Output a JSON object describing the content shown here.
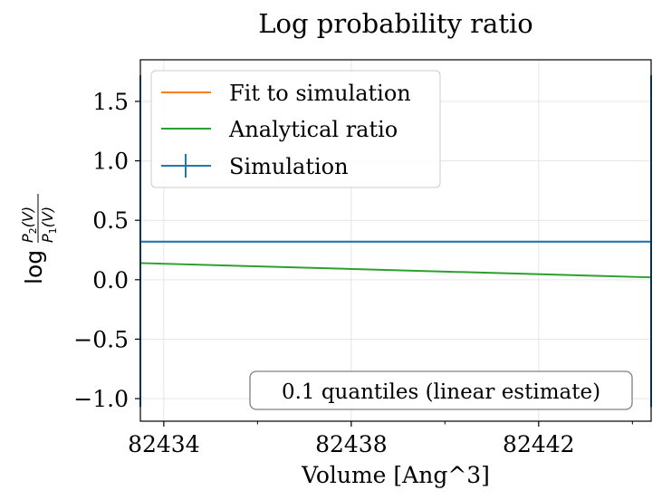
{
  "chart_data": {
    "type": "line",
    "title": "Log probability ratio",
    "xlabel": "Volume [Ang^3]",
    "ylabel": "log P2(V)/P1(V)",
    "ylabel_parts": {
      "log": "log",
      "num": "P",
      "num_sub": "2",
      "num_arg": "(V)",
      "den": "P",
      "den_sub": "1",
      "den_arg": "(V)"
    },
    "xlim": [
      82433.5,
      82444.4
    ],
    "ylim": [
      -1.19,
      1.85
    ],
    "xticks": [
      82434,
      82438,
      82442
    ],
    "xtick_labels": [
      "82434",
      "82438",
      "82442"
    ],
    "xminor": [
      82436,
      82440,
      82444
    ],
    "yticks": [
      -1.0,
      -0.5,
      0.0,
      0.5,
      1.0,
      1.5
    ],
    "ytick_labels": [
      "−1.0",
      "−0.5",
      "0.0",
      "0.5",
      "1.0",
      "1.5"
    ],
    "grid": true,
    "legend_position": "upper-left",
    "series": [
      {
        "name": "Fit to simulation",
        "color": "#ff7f0e",
        "x": [],
        "y": []
      },
      {
        "name": "Analytical ratio",
        "color": "#2ca02c",
        "x": [
          82433.5,
          82444.4
        ],
        "y": [
          0.14,
          0.02
        ]
      },
      {
        "name": "Simulation",
        "color": "#1f77b4",
        "x": [
          82433.5,
          82444.4
        ],
        "y": [
          0.32,
          0.32
        ],
        "yerr_low": [
          -1.07,
          -1.07
        ],
        "yerr_high": [
          1.72,
          1.72
        ]
      }
    ],
    "annotation": "0.1 quantiles (linear estimate)",
    "annotation_position": "lower-right"
  }
}
